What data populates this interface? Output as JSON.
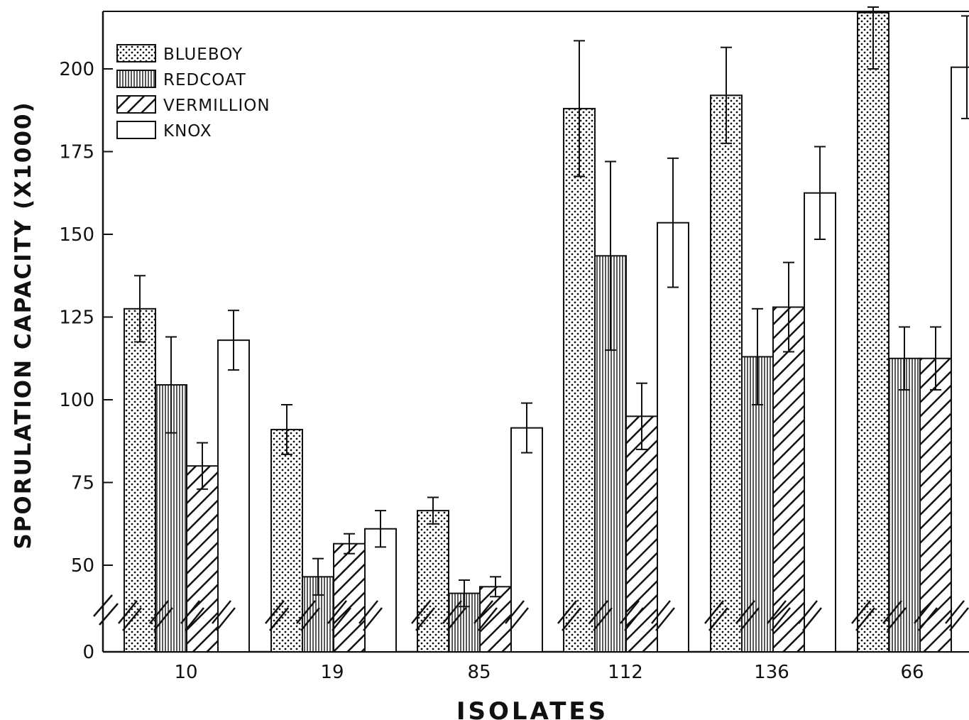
{
  "chart_data": {
    "type": "bar",
    "title": "",
    "xlabel": "ISOLATES",
    "ylabel": "SPORULATION CAPACITY (X1000)",
    "ylim": [
      0,
      218
    ],
    "axis_break": true,
    "y_ticks": [
      0,
      50,
      75,
      100,
      125,
      150,
      175,
      200
    ],
    "y_tick_labels": [
      "0",
      "50",
      "75",
      "100",
      "125",
      "150",
      "175",
      "200"
    ],
    "categories": [
      "10",
      "19",
      "85",
      "112",
      "136",
      "66"
    ],
    "legend_position": "top-left",
    "grid": false,
    "series": [
      {
        "name": "BLUEBOY",
        "pattern": "dots",
        "values": [
          127.5,
          91,
          66.5,
          188,
          192,
          217
        ],
        "errors": [
          10,
          7.5,
          4,
          20.5,
          14.5,
          17
        ]
      },
      {
        "name": "REDCOAT",
        "pattern": "vertical-lines",
        "values": [
          104.5,
          46.5,
          41.5,
          143.5,
          113,
          112.5
        ],
        "errors": [
          14.5,
          5.5,
          4,
          28.5,
          14.5,
          9.5
        ]
      },
      {
        "name": "VERMILLION",
        "pattern": "diagonal-hatch",
        "values": [
          80,
          56.5,
          43.5,
          95,
          128,
          112.5
        ],
        "errors": [
          7,
          3,
          3,
          10,
          13.5,
          9.5
        ]
      },
      {
        "name": "KNOX",
        "pattern": "none",
        "values": [
          118,
          61,
          91.5,
          153.5,
          162.5,
          200.5
        ],
        "errors": [
          9,
          5.5,
          7.5,
          19.5,
          14,
          15.5
        ]
      }
    ]
  }
}
